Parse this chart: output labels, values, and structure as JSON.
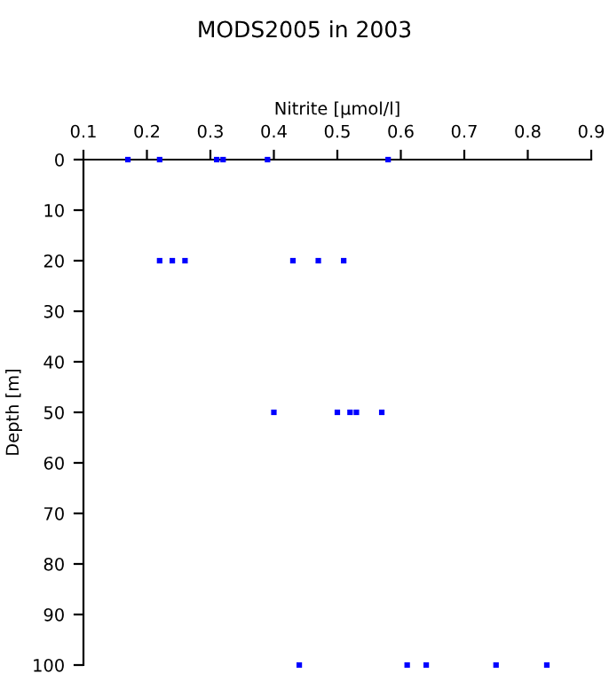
{
  "chart_data": {
    "type": "scatter",
    "title": "MODS2005 in 2003",
    "xlabel": "Nitrite [µmol/l]",
    "ylabel": "Depth [m]",
    "x": [
      0.17,
      0.22,
      0.31,
      0.32,
      0.39,
      0.58,
      0.22,
      0.24,
      0.26,
      0.43,
      0.47,
      0.51,
      0.4,
      0.5,
      0.52,
      0.53,
      0.57,
      0.44,
      0.61,
      0.64,
      0.75,
      0.83
    ],
    "series": [
      {
        "color": "#0000ff",
        "values": [
          0,
          0,
          0,
          0,
          0,
          0,
          20,
          20,
          20,
          20,
          20,
          20,
          50,
          50,
          50,
          50,
          50,
          100,
          100,
          100,
          100,
          100
        ]
      }
    ],
    "xlim": [
      0.1,
      0.9
    ],
    "xticks": [
      0.1,
      0.2,
      0.3,
      0.4,
      0.5,
      0.6,
      0.7,
      0.8,
      0.9
    ],
    "ylim": [
      100,
      0
    ],
    "yticks": [
      0,
      10,
      20,
      30,
      40,
      50,
      60,
      70,
      80,
      90,
      100
    ],
    "marker": "square",
    "grid": false,
    "legend": false
  }
}
